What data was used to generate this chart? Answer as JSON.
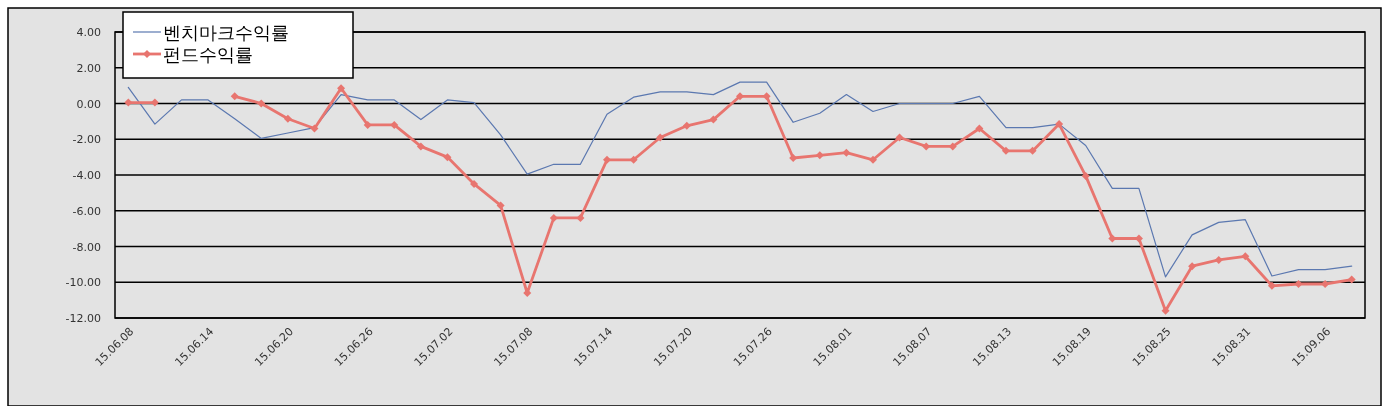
{
  "chart_data": {
    "type": "line",
    "categories": [
      "15.06.08",
      null,
      null,
      "15.06.14",
      null,
      null,
      "15.06.20",
      null,
      null,
      "15.06.26",
      null,
      null,
      "15.07.02",
      null,
      null,
      "15.07.08",
      null,
      null,
      "15.07.14",
      null,
      null,
      "15.07.20",
      null,
      null,
      "15.07.26",
      null,
      null,
      "15.08.01",
      null,
      null,
      "15.08.07",
      null,
      null,
      "15.08.13",
      null,
      null,
      "15.08.19",
      null,
      null,
      "15.08.25",
      null,
      null,
      "15.08.31",
      null,
      null,
      "15.09.06",
      null
    ],
    "series": [
      {
        "name": "벤치마크수익률",
        "color": "#5b78b0",
        "marker": "none",
        "values": [
          0.9,
          -1.15,
          0.2,
          0.2,
          -0.85,
          -1.95,
          -1.65,
          -1.35,
          0.5,
          0.2,
          0.2,
          -0.9,
          0.2,
          0.05,
          -1.75,
          -3.95,
          -3.4,
          -3.4,
          -0.6,
          0.35,
          0.65,
          0.65,
          0.5,
          1.2,
          1.2,
          -1.05,
          -0.55,
          0.5,
          -0.45,
          0.0,
          0.0,
          0.0,
          0.4,
          -1.35,
          -1.35,
          -1.15,
          -2.35,
          -4.75,
          -4.75,
          -9.7,
          -7.35,
          -6.65,
          -6.5,
          -9.65,
          -9.3,
          -9.3,
          -9.1
        ]
      },
      {
        "name": "펀드수익률",
        "color": "#e8756f",
        "marker": "diamond",
        "values": [
          0.05,
          0.05,
          null,
          null,
          0.4,
          0.0,
          -0.85,
          -1.4,
          0.85,
          -1.2,
          -1.2,
          -2.4,
          -3.0,
          -4.5,
          -5.7,
          -10.6,
          -6.4,
          -6.4,
          -3.15,
          -3.15,
          -1.9,
          -1.25,
          -0.9,
          0.4,
          0.4,
          -3.05,
          -2.9,
          -2.75,
          -3.15,
          -1.9,
          -2.4,
          -2.4,
          -1.4,
          -2.65,
          -2.65,
          -1.15,
          -4.05,
          -7.55,
          -7.55,
          -11.6,
          -9.1,
          -8.75,
          -8.55,
          -10.2,
          -10.1,
          -10.1,
          -9.85
        ]
      }
    ],
    "ylim": [
      -12,
      4
    ],
    "yticks": [
      {
        "value": 4,
        "label": "4.00"
      },
      {
        "value": 2,
        "label": "2.00"
      },
      {
        "value": 0,
        "label": "0.00"
      },
      {
        "value": -2,
        "label": "-2.00"
      },
      {
        "value": -4,
        "label": "-4.00"
      },
      {
        "value": -6,
        "label": "-6.00"
      },
      {
        "value": -8,
        "label": "-8.00"
      },
      {
        "value": -10,
        "label": "-10.00"
      },
      {
        "value": -12,
        "label": "-12.00"
      }
    ],
    "grid": "y",
    "legend": "top left"
  }
}
